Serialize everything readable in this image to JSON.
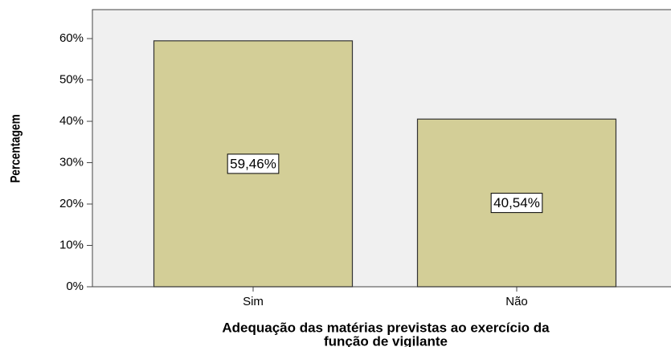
{
  "chart_data": {
    "type": "bar",
    "categories": [
      "Sim",
      "Não"
    ],
    "values": [
      59.46,
      40.54
    ],
    "value_labels": [
      "59,46%",
      "40,54%"
    ],
    "color": "#d3ce97",
    "ylabel": "Percentagem",
    "xlabel": [
      "Adequação das matérias previstas ao exercício da",
      "função de vigilante"
    ],
    "ylim": [
      0,
      67
    ],
    "yticks": [
      {
        "value": 0,
        "label": "0%"
      },
      {
        "value": 10,
        "label": "10%"
      },
      {
        "value": 20,
        "label": "20%"
      },
      {
        "value": 30,
        "label": "30%"
      },
      {
        "value": 40,
        "label": "40%"
      },
      {
        "value": 50,
        "label": "50%"
      },
      {
        "value": 60,
        "label": "60%"
      }
    ]
  }
}
